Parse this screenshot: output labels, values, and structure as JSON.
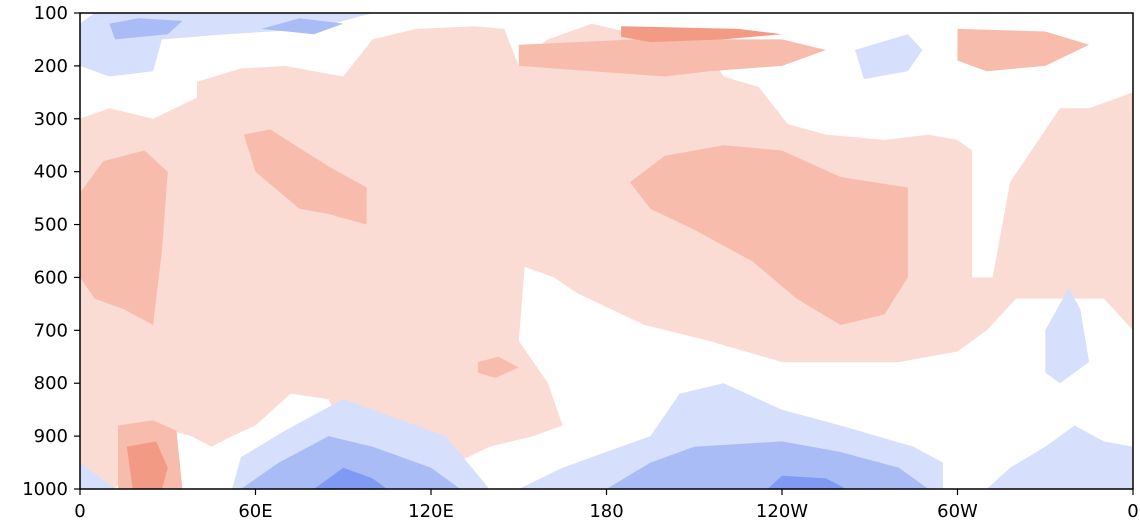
{
  "chart_data": {
    "type": "heatmap",
    "title": "",
    "xlabel": "",
    "ylabel": "",
    "x_ticks": [
      "0",
      "60E",
      "120E",
      "180",
      "120W",
      "60W",
      "0"
    ],
    "x_tick_values": [
      0,
      60,
      120,
      180,
      240,
      300,
      360
    ],
    "y_ticks": [
      "100",
      "200",
      "300",
      "400",
      "500",
      "600",
      "700",
      "800",
      "900",
      "1000"
    ],
    "y_tick_values": [
      100,
      200,
      300,
      400,
      500,
      600,
      700,
      800,
      900,
      1000
    ],
    "xlim": [
      0,
      360
    ],
    "ylim": [
      100,
      1000
    ],
    "y_inverted": true,
    "grid": false,
    "colormap": "coolwarm-diverging",
    "levels": [
      {
        "level": -3,
        "color": "#7f9af2"
      },
      {
        "level": -2,
        "color": "#a9bcf6"
      },
      {
        "level": -1,
        "color": "#d6dffb"
      },
      {
        "level": 0,
        "color": "#ffffff"
      },
      {
        "level": 1,
        "color": "#fbdcd4"
      },
      {
        "level": 2,
        "color": "#f7bcab"
      },
      {
        "level": 3,
        "color": "#f39a85"
      }
    ],
    "regions": [
      {
        "level": 1,
        "points": [
          [
            0,
            300
          ],
          [
            10,
            280
          ],
          [
            25,
            300
          ],
          [
            40,
            260
          ],
          [
            40,
            230
          ],
          [
            55,
            205
          ],
          [
            70,
            200
          ],
          [
            90,
            220
          ],
          [
            100,
            150
          ],
          [
            115,
            130
          ],
          [
            135,
            125
          ],
          [
            145,
            130
          ],
          [
            150,
            200
          ],
          [
            155,
            170
          ],
          [
            160,
            150
          ],
          [
            175,
            120
          ],
          [
            190,
            140
          ],
          [
            210,
            130
          ],
          [
            220,
            220
          ],
          [
            232,
            240
          ],
          [
            242,
            310
          ],
          [
            255,
            330
          ],
          [
            275,
            340
          ],
          [
            290,
            330
          ],
          [
            300,
            340
          ],
          [
            305,
            360
          ],
          [
            305,
            600
          ],
          [
            312,
            600
          ],
          [
            318,
            420
          ],
          [
            335,
            280
          ],
          [
            345,
            280
          ],
          [
            355,
            260
          ],
          [
            360,
            250
          ],
          [
            360,
            700
          ],
          [
            350,
            640
          ],
          [
            320,
            640
          ],
          [
            310,
            700
          ],
          [
            300,
            740
          ],
          [
            280,
            760
          ],
          [
            240,
            760
          ],
          [
            215,
            720
          ],
          [
            193,
            690
          ],
          [
            170,
            630
          ],
          [
            162,
            600
          ],
          [
            152,
            580
          ],
          [
            150,
            720
          ],
          [
            160,
            800
          ],
          [
            165,
            880
          ],
          [
            155,
            900
          ],
          [
            140,
            920
          ],
          [
            125,
            960
          ],
          [
            120,
            1000
          ],
          [
            110,
            1000
          ],
          [
            100,
            960
          ],
          [
            90,
            900
          ],
          [
            85,
            830
          ],
          [
            72,
            820
          ],
          [
            60,
            880
          ],
          [
            52,
            900
          ],
          [
            45,
            920
          ],
          [
            38,
            900
          ],
          [
            25,
            880
          ],
          [
            12,
            1000
          ],
          [
            0,
            1000
          ]
        ]
      },
      {
        "level": 2,
        "points": [
          [
            0,
            440
          ],
          [
            8,
            380
          ],
          [
            22,
            360
          ],
          [
            30,
            400
          ],
          [
            28,
            550
          ],
          [
            25,
            690
          ],
          [
            15,
            660
          ],
          [
            5,
            640
          ],
          [
            0,
            600
          ]
        ]
      },
      {
        "level": 2,
        "points": [
          [
            56,
            330
          ],
          [
            65,
            320
          ],
          [
            85,
            390
          ],
          [
            98,
            430
          ],
          [
            98,
            500
          ],
          [
            85,
            480
          ],
          [
            75,
            470
          ],
          [
            60,
            400
          ]
        ]
      },
      {
        "level": 2,
        "points": [
          [
            188,
            420
          ],
          [
            200,
            370
          ],
          [
            220,
            350
          ],
          [
            240,
            360
          ],
          [
            260,
            410
          ],
          [
            283,
            430
          ],
          [
            283,
            600
          ],
          [
            275,
            670
          ],
          [
            260,
            690
          ],
          [
            245,
            640
          ],
          [
            230,
            570
          ],
          [
            210,
            510
          ],
          [
            195,
            470
          ]
        ]
      },
      {
        "level": 2,
        "points": [
          [
            150,
            160
          ],
          [
            190,
            150
          ],
          [
            240,
            150
          ],
          [
            255,
            170
          ],
          [
            240,
            200
          ],
          [
            215,
            210
          ],
          [
            200,
            220
          ],
          [
            175,
            210
          ],
          [
            150,
            200
          ]
        ]
      },
      {
        "level": 2,
        "points": [
          [
            300,
            130
          ],
          [
            330,
            135
          ],
          [
            345,
            160
          ],
          [
            330,
            200
          ],
          [
            310,
            210
          ],
          [
            300,
            190
          ]
        ]
      },
      {
        "level": 2,
        "points": [
          [
            13,
            880
          ],
          [
            25,
            870
          ],
          [
            33,
            890
          ],
          [
            35,
            1000
          ],
          [
            13,
            1000
          ]
        ]
      },
      {
        "level": 2,
        "points": [
          [
            136,
            760
          ],
          [
            143,
            750
          ],
          [
            150,
            770
          ],
          [
            142,
            790
          ],
          [
            136,
            780
          ]
        ]
      },
      {
        "level": 3,
        "points": [
          [
            185,
            125
          ],
          [
            225,
            130
          ],
          [
            240,
            140
          ],
          [
            220,
            150
          ],
          [
            195,
            155
          ],
          [
            185,
            145
          ]
        ]
      },
      {
        "level": 3,
        "points": [
          [
            16,
            920
          ],
          [
            26,
            910
          ],
          [
            30,
            960
          ],
          [
            28,
            1000
          ],
          [
            18,
            1000
          ]
        ]
      },
      {
        "level": -1,
        "points": [
          [
            0,
            120
          ],
          [
            5,
            100
          ],
          [
            100,
            100
          ],
          [
            80,
            130
          ],
          [
            50,
            140
          ],
          [
            28,
            150
          ],
          [
            25,
            210
          ],
          [
            10,
            220
          ],
          [
            0,
            200
          ]
        ]
      },
      {
        "level": -1,
        "points": [
          [
            265,
            170
          ],
          [
            283,
            140
          ],
          [
            288,
            170
          ],
          [
            283,
            210
          ],
          [
            268,
            225
          ]
        ]
      },
      {
        "level": -1,
        "points": [
          [
            0,
            950
          ],
          [
            12,
            1000
          ],
          [
            0,
            1000
          ]
        ]
      },
      {
        "level": -1,
        "points": [
          [
            52,
            1000
          ],
          [
            55,
            940
          ],
          [
            70,
            890
          ],
          [
            90,
            830
          ],
          [
            110,
            870
          ],
          [
            125,
            900
          ],
          [
            140,
            1000
          ]
        ]
      },
      {
        "level": -1,
        "points": [
          [
            150,
            1000
          ],
          [
            165,
            960
          ],
          [
            195,
            900
          ],
          [
            205,
            820
          ],
          [
            220,
            800
          ],
          [
            240,
            850
          ],
          [
            260,
            880
          ],
          [
            285,
            920
          ],
          [
            295,
            950
          ],
          [
            295,
            1000
          ]
        ]
      },
      {
        "level": -1,
        "points": [
          [
            310,
            1000
          ],
          [
            318,
            960
          ],
          [
            330,
            920
          ],
          [
            340,
            880
          ],
          [
            350,
            910
          ],
          [
            360,
            920
          ],
          [
            360,
            1000
          ]
        ]
      },
      {
        "level": -1,
        "points": [
          [
            330,
            700
          ],
          [
            338,
            620
          ],
          [
            342,
            660
          ],
          [
            345,
            760
          ],
          [
            335,
            800
          ],
          [
            330,
            780
          ]
        ]
      },
      {
        "level": -2,
        "points": [
          [
            10,
            120
          ],
          [
            20,
            110
          ],
          [
            35,
            115
          ],
          [
            30,
            140
          ],
          [
            12,
            150
          ]
        ]
      },
      {
        "level": -2,
        "points": [
          [
            55,
            1000
          ],
          [
            68,
            950
          ],
          [
            85,
            900
          ],
          [
            100,
            920
          ],
          [
            120,
            960
          ],
          [
            130,
            1000
          ]
        ]
      },
      {
        "level": -2,
        "points": [
          [
            180,
            1000
          ],
          [
            195,
            950
          ],
          [
            210,
            920
          ],
          [
            240,
            910
          ],
          [
            260,
            930
          ],
          [
            280,
            960
          ],
          [
            290,
            1000
          ]
        ]
      },
      {
        "level": -2,
        "points": [
          [
            62,
            130
          ],
          [
            75,
            110
          ],
          [
            90,
            120
          ],
          [
            80,
            140
          ]
        ]
      },
      {
        "level": -3,
        "points": [
          [
            80,
            1000
          ],
          [
            90,
            960
          ],
          [
            100,
            980
          ],
          [
            105,
            1000
          ]
        ]
      },
      {
        "level": -3,
        "points": [
          [
            235,
            1000
          ],
          [
            240,
            975
          ],
          [
            255,
            980
          ],
          [
            262,
            1000
          ]
        ]
      }
    ]
  }
}
